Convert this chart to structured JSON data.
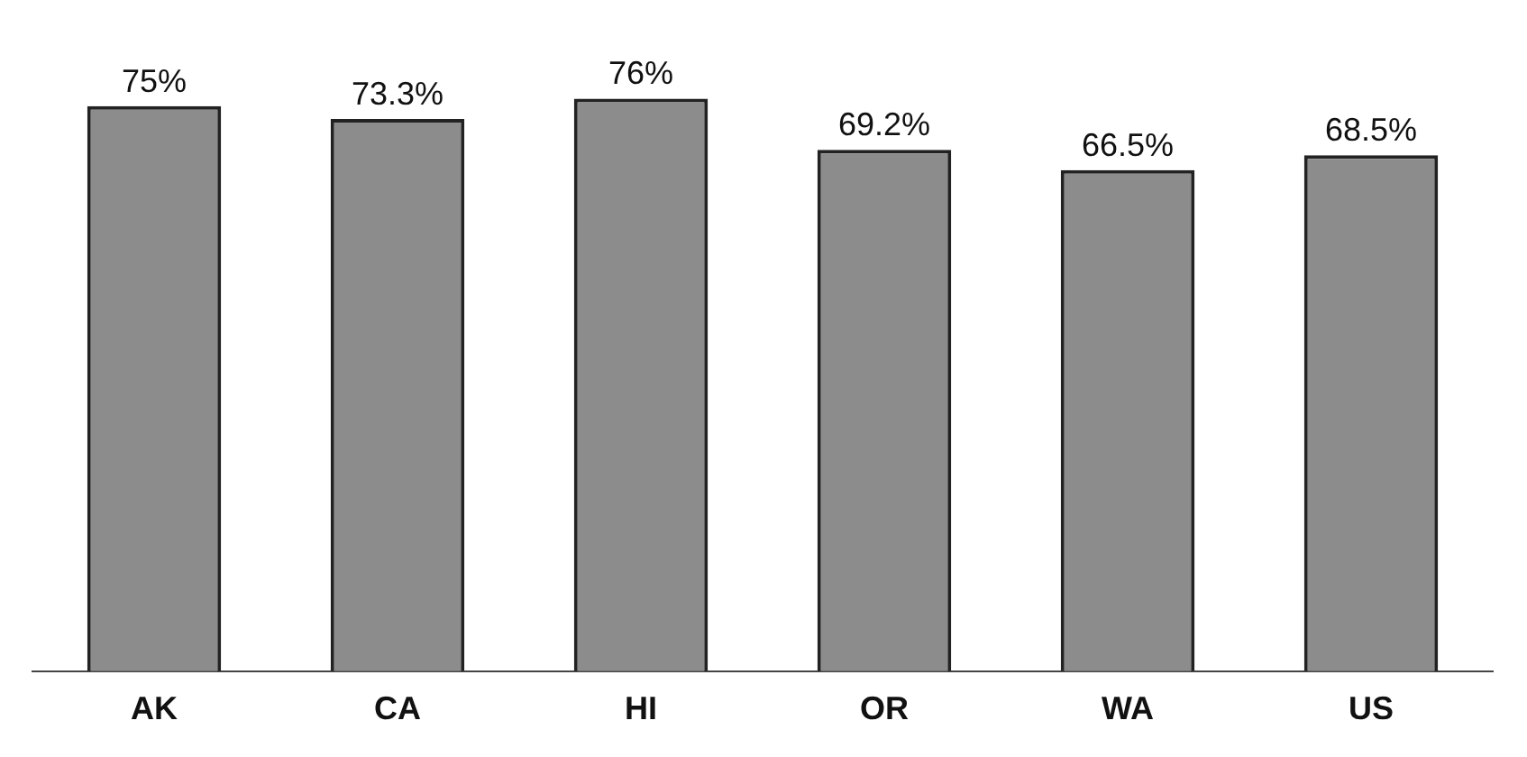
{
  "chart_data": {
    "type": "bar",
    "categories": [
      "AK",
      "CA",
      "HI",
      "OR",
      "WA",
      "US"
    ],
    "values": [
      75,
      73.3,
      76,
      69.2,
      66.5,
      68.5
    ],
    "value_labels": [
      "75%",
      "73.3%",
      "76%",
      "69.2%",
      "66.5%",
      "68.5%"
    ],
    "color": "#8c8c8c",
    "grid": false,
    "legend": false
  }
}
